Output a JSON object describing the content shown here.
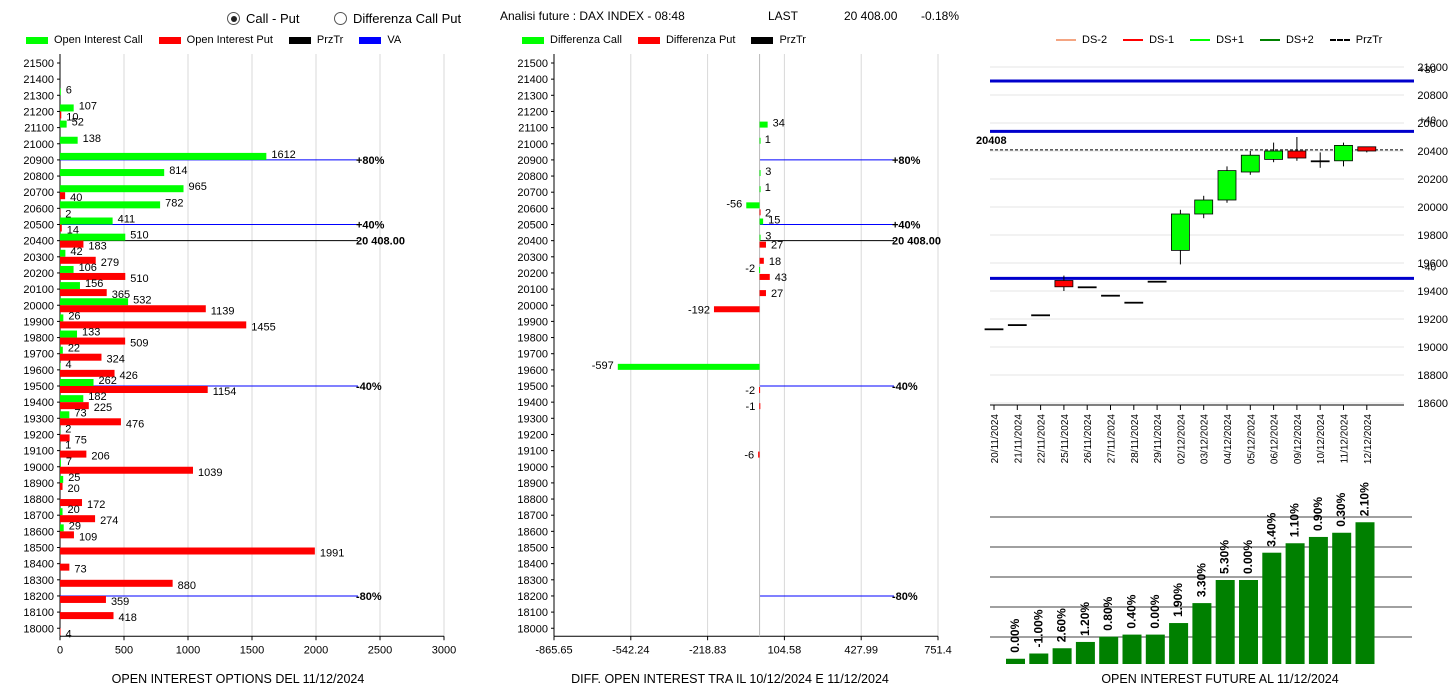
{
  "header": {
    "radio_call_put": "Call - Put",
    "radio_diff": "Differenza Call Put",
    "analysis_label": "Analisi future : DAX INDEX - 08:48",
    "last_label": "LAST",
    "last_value": "20 408.00",
    "last_change": "-0.18%"
  },
  "legends": {
    "left": [
      {
        "label": "Open Interest Call",
        "color": "#00ff00"
      },
      {
        "label": "Open Interest Put",
        "color": "#ff0000"
      },
      {
        "label": "PrzTr",
        "color": "#000000"
      },
      {
        "label": "VA",
        "color": "#0000ff"
      }
    ],
    "middle": [
      {
        "label": "Differenza Call",
        "color": "#00ff00"
      },
      {
        "label": "Differenza Put",
        "color": "#ff0000"
      },
      {
        "label": "PrzTr",
        "color": "#000000"
      }
    ],
    "right": [
      {
        "label": "DS-2",
        "color": "#f4a582",
        "style": "solid"
      },
      {
        "label": "DS-1",
        "color": "#ff0000",
        "style": "solid"
      },
      {
        "label": "DS+1",
        "color": "#00ff00",
        "style": "solid"
      },
      {
        "label": "DS+2",
        "color": "#008000",
        "style": "solid"
      },
      {
        "label": "PrzTr",
        "color": "#000000",
        "style": "dashed"
      }
    ]
  },
  "titles": {
    "left": "OPEN INTEREST OPTIONS DEL 11/12/2024",
    "middle": "DIFF. OPEN INTEREST TRA IL 10/12/2024 E 11/12/2024",
    "right": "OPEN INTEREST FUTURE AL 11/12/2024"
  },
  "chart_data": [
    {
      "type": "bar",
      "orientation": "horizontal",
      "title": "OPEN INTEREST OPTIONS DEL 11/12/2024",
      "categories": [
        "21500",
        "21400",
        "21300",
        "21200",
        "21100",
        "21000",
        "20900",
        "20800",
        "20700",
        "20600",
        "20500",
        "20400",
        "20300",
        "20200",
        "20100",
        "20000",
        "19900",
        "19800",
        "19700",
        "19600",
        "19500",
        "19400",
        "19300",
        "19200",
        "19100",
        "19000",
        "18900",
        "18800",
        "18700",
        "18600",
        "18500",
        "18400",
        "18300",
        "18200",
        "18100",
        "18000"
      ],
      "series": [
        {
          "name": "Open Interest Call",
          "color": "#00ff00",
          "values": [
            0,
            0,
            6,
            107,
            52,
            138,
            1612,
            814,
            965,
            782,
            411,
            510,
            42,
            106,
            156,
            532,
            26,
            133,
            22,
            4,
            262,
            182,
            73,
            2,
            1,
            7,
            25,
            0,
            20,
            29,
            0,
            0,
            0,
            0,
            0,
            0
          ]
        },
        {
          "name": "Open Interest Put",
          "color": "#ff0000",
          "values": [
            0,
            0,
            0,
            10,
            0,
            0,
            0,
            0,
            40,
            2,
            14,
            183,
            279,
            510,
            365,
            1139,
            1455,
            509,
            324,
            426,
            1154,
            225,
            476,
            75,
            206,
            1039,
            20,
            172,
            274,
            109,
            1991,
            73,
            880,
            359,
            418,
            4
          ]
        }
      ],
      "labels_call": [
        null,
        null,
        "6",
        "107",
        "52",
        "138",
        "1612",
        "814",
        "965",
        "782",
        "411",
        "510",
        "42",
        "106",
        "156",
        "532",
        "26",
        "133",
        "22",
        "4",
        "262",
        "182",
        "73",
        "2",
        "1",
        "7",
        "25",
        null,
        "20",
        "29",
        null,
        null,
        null,
        null,
        null,
        null
      ],
      "labels_put": [
        null,
        null,
        null,
        "10",
        null,
        null,
        null,
        null,
        "40",
        "2",
        "14",
        "183",
        "279",
        "510",
        "365",
        "1139",
        "1455",
        "509",
        "324",
        "426",
        "1154",
        "225",
        "476",
        "75",
        "206",
        "1039",
        "20",
        "172",
        "274",
        "109",
        "1991",
        "73",
        "880",
        "359",
        "418",
        "4"
      ],
      "xlim": [
        0,
        3000
      ],
      "xticks": [
        "0",
        "500",
        "1000",
        "1500",
        "2000",
        "2500",
        "3000"
      ],
      "ref_lines": [
        {
          "at": "20900",
          "label": "+80%",
          "color": "#0000ff"
        },
        {
          "at": "20500",
          "label": "+40%",
          "color": "#0000ff"
        },
        {
          "at": "20400",
          "label": "20 408.00",
          "color": "#000000"
        },
        {
          "at": "19500",
          "label": "-40%",
          "color": "#0000ff"
        },
        {
          "at": "18200",
          "label": "-80%",
          "color": "#0000ff"
        }
      ]
    },
    {
      "type": "bar",
      "orientation": "horizontal",
      "title": "DIFF. OPEN INTEREST TRA IL 10/12/2024 E 11/12/2024",
      "categories": [
        "21500",
        "21400",
        "21300",
        "21200",
        "21100",
        "21000",
        "20900",
        "20800",
        "20700",
        "20600",
        "20500",
        "20400",
        "20300",
        "20200",
        "20100",
        "20000",
        "19900",
        "19800",
        "19700",
        "19600",
        "19500",
        "19400",
        "19300",
        "19200",
        "19100",
        "19000",
        "18900",
        "18800",
        "18700",
        "18600",
        "18500",
        "18400",
        "18300",
        "18200",
        "18100",
        "18000"
      ],
      "series": [
        {
          "name": "Differenza Call",
          "color": "#00ff00",
          "values": [
            0,
            0,
            0,
            0,
            34,
            1,
            0,
            3,
            1,
            -56,
            15,
            3,
            0,
            -2,
            0,
            0,
            0,
            0,
            0,
            -597,
            0,
            0,
            0,
            0,
            0,
            0,
            0,
            0,
            0,
            0,
            0,
            0,
            0,
            0,
            0,
            0
          ]
        },
        {
          "name": "Differenza Put",
          "color": "#ff0000",
          "values": [
            0,
            0,
            0,
            0,
            0,
            0,
            0,
            0,
            0,
            2,
            0,
            27,
            18,
            43,
            27,
            -192,
            0,
            0,
            0,
            0,
            -2,
            -1,
            0,
            0,
            -6,
            0,
            0,
            0,
            0,
            0,
            0,
            0,
            0,
            0,
            0,
            0
          ]
        }
      ],
      "labels": [
        {
          "cat": "21100",
          "text": "34",
          "series": 0
        },
        {
          "cat": "21000",
          "text": "1",
          "series": 0
        },
        {
          "cat": "20800",
          "text": "3",
          "series": 0
        },
        {
          "cat": "20700",
          "text": "1",
          "series": 0
        },
        {
          "cat": "20600",
          "text": "-56",
          "series": 0
        },
        {
          "cat": "20600",
          "text": "2",
          "series": 1
        },
        {
          "cat": "20500",
          "text": "15",
          "series": 0
        },
        {
          "cat": "20400",
          "text": "3",
          "series": 0
        },
        {
          "cat": "20400",
          "text": "27",
          "series": 1
        },
        {
          "cat": "20300",
          "text": "18",
          "series": 1
        },
        {
          "cat": "20200",
          "text": "-2",
          "series": 0
        },
        {
          "cat": "20200",
          "text": "43",
          "series": 1
        },
        {
          "cat": "20100",
          "text": "27",
          "series": 1
        },
        {
          "cat": "20000",
          "text": "-192",
          "series": 1
        },
        {
          "cat": "19600",
          "text": "-597",
          "series": 0
        },
        {
          "cat": "19500",
          "text": "-2",
          "series": 1
        },
        {
          "cat": "19400",
          "text": "-1",
          "series": 1
        },
        {
          "cat": "19100",
          "text": "-6",
          "series": 1
        }
      ],
      "xlim": [
        -865.65,
        751.4
      ],
      "xticks": [
        "-865.65",
        "-542.24",
        "-218.83",
        "104.58",
        "427.99",
        "751.4"
      ],
      "ref_lines": [
        {
          "at": "20900",
          "label": "+80%",
          "color": "#0000ff"
        },
        {
          "at": "20500",
          "label": "+40%",
          "color": "#0000ff"
        },
        {
          "at": "20400",
          "label": "20 408.00",
          "color": "#000000"
        },
        {
          "at": "19500",
          "label": "-40%",
          "color": "#0000ff"
        },
        {
          "at": "18200",
          "label": "-80%",
          "color": "#0000ff"
        }
      ]
    },
    {
      "type": "candlestick",
      "categories": [
        "20/11/2024",
        "21/11/2024",
        "22/11/2024",
        "25/11/2024",
        "26/11/2024",
        "27/11/2024",
        "28/11/2024",
        "29/11/2024",
        "02/12/2024",
        "03/12/2024",
        "04/12/2024",
        "05/12/2024",
        "06/12/2024",
        "09/12/2024",
        "10/12/2024",
        "11/12/2024",
        "12/12/2024"
      ],
      "ohlc": [
        [
          19130,
          19130,
          19130,
          19130
        ],
        [
          19160,
          19160,
          19160,
          19160
        ],
        [
          19230,
          19230,
          19230,
          19230
        ],
        [
          19475,
          19510,
          19400,
          19430
        ],
        [
          19430,
          19430,
          19430,
          19430
        ],
        [
          19370,
          19370,
          19370,
          19370
        ],
        [
          19320,
          19320,
          19320,
          19320
        ],
        [
          19470,
          19470,
          19470,
          19470
        ],
        [
          19690,
          19980,
          19590,
          19950
        ],
        [
          19950,
          20080,
          19920,
          20050
        ],
        [
          20050,
          20290,
          20030,
          20260
        ],
        [
          20250,
          20400,
          20230,
          20370
        ],
        [
          20340,
          20460,
          20320,
          20400
        ],
        [
          20400,
          20500,
          20330,
          20350
        ],
        [
          20330,
          20390,
          20280,
          20330
        ],
        [
          20330,
          20460,
          20290,
          20440
        ],
        [
          20430,
          20430,
          20390,
          20400
        ]
      ],
      "yticks": [
        "21000",
        "20800",
        "20600",
        "20400",
        "20200",
        "20000",
        "19800",
        "19600",
        "19400",
        "19200",
        "19000",
        "18800",
        "18600"
      ],
      "ylim": [
        18600,
        21000
      ],
      "price_label": "20408",
      "price": 20408,
      "bands": [
        {
          "value": 20900,
          "label": "+80"
        },
        {
          "value": 20540,
          "label": "+40"
        },
        {
          "value": 19490,
          "label": "-40"
        }
      ]
    },
    {
      "type": "bar",
      "title": "OPEN INTEREST FUTURE AL 11/12/2024",
      "values": [
        0.5,
        1.0,
        1.5,
        2.1,
        2.6,
        2.8,
        2.8,
        3.9,
        5.8,
        8.0,
        8.0,
        10.6,
        11.5,
        12.1,
        12.5,
        13.5
      ],
      "value_labels": [
        "0.00%",
        "-1.00%",
        "2.60%",
        "1.20%",
        "0.80%",
        "0.40%",
        "0.00%",
        "1.90%",
        "3.30%",
        "5.30%",
        "0.00%",
        "3.40%",
        "1.10%",
        "0.90%",
        "0.30%",
        "2.10%"
      ],
      "ylim": [
        0,
        14
      ],
      "color": "#008000"
    }
  ]
}
